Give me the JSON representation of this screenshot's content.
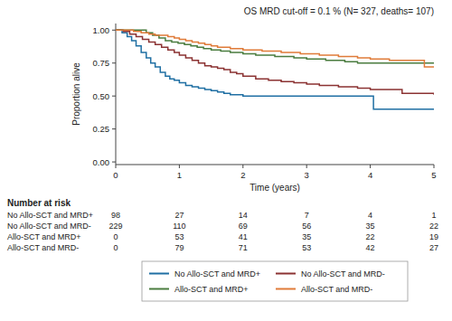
{
  "chart_data": {
    "type": "step",
    "title": "OS MRD cut-off = 0.1 % (N= 327, deaths= 107)",
    "xlabel": "Time (years)",
    "ylabel": "Proportion alive",
    "xlim": [
      0,
      5
    ],
    "ylim": [
      -0.02,
      1.05
    ],
    "xticks": [
      0,
      1,
      2,
      3,
      4,
      5
    ],
    "yticks": [
      {
        "value": 0.0,
        "label": "0.00"
      },
      {
        "value": 0.25,
        "label": "0.25"
      },
      {
        "value": 0.5,
        "label": "0.50"
      },
      {
        "value": 0.75,
        "label": "0.75"
      },
      {
        "value": 1.0,
        "label": "1.00"
      }
    ],
    "grid": false,
    "legend": "bottom",
    "at_risk_title": "Number at risk",
    "series": [
      {
        "name": "No Allo-SCT and MRD+",
        "color": "#1F6FA3",
        "x": [
          0,
          0.1,
          0.18,
          0.25,
          0.32,
          0.4,
          0.48,
          0.55,
          0.62,
          0.7,
          0.78,
          0.85,
          0.92,
          1.0,
          1.1,
          1.2,
          1.3,
          1.4,
          1.5,
          1.6,
          1.7,
          1.8,
          1.9,
          2.0,
          2.2,
          2.4,
          2.6,
          2.8,
          3.0,
          3.2,
          3.5,
          3.8,
          4.0,
          4.05,
          5.0
        ],
        "values": [
          1.0,
          0.98,
          0.95,
          0.92,
          0.88,
          0.83,
          0.79,
          0.75,
          0.72,
          0.68,
          0.65,
          0.63,
          0.62,
          0.6,
          0.58,
          0.57,
          0.56,
          0.55,
          0.54,
          0.53,
          0.52,
          0.51,
          0.51,
          0.5,
          0.5,
          0.5,
          0.5,
          0.5,
          0.5,
          0.5,
          0.5,
          0.5,
          0.5,
          0.4,
          0.4
        ],
        "at_risk": [
          98,
          27,
          14,
          7,
          4,
          1
        ]
      },
      {
        "name": "No Allo-SCT and MRD-",
        "color": "#8B3232",
        "x": [
          0,
          0.12,
          0.22,
          0.32,
          0.42,
          0.52,
          0.62,
          0.72,
          0.82,
          0.92,
          1.0,
          1.1,
          1.2,
          1.3,
          1.4,
          1.5,
          1.6,
          1.7,
          1.8,
          1.9,
          2.0,
          2.2,
          2.4,
          2.6,
          2.8,
          3.0,
          3.2,
          3.5,
          3.8,
          4.0,
          4.5,
          5.0
        ],
        "values": [
          1.0,
          0.99,
          0.97,
          0.95,
          0.93,
          0.91,
          0.89,
          0.87,
          0.85,
          0.83,
          0.81,
          0.79,
          0.77,
          0.75,
          0.73,
          0.72,
          0.71,
          0.7,
          0.68,
          0.67,
          0.65,
          0.63,
          0.62,
          0.61,
          0.6,
          0.59,
          0.58,
          0.57,
          0.56,
          0.55,
          0.52,
          0.51
        ],
        "at_risk": [
          229,
          110,
          69,
          56,
          35,
          22
        ]
      },
      {
        "name": "Allo-SCT and MRD+",
        "color": "#4A7C3F",
        "x": [
          0,
          0.35,
          0.48,
          0.58,
          0.68,
          0.78,
          0.88,
          0.98,
          1.08,
          1.18,
          1.28,
          1.38,
          1.5,
          1.65,
          1.8,
          2.0,
          2.2,
          2.5,
          2.8,
          3.0,
          3.3,
          3.6,
          3.8,
          4.0,
          4.3,
          4.6,
          5.0
        ],
        "values": [
          1.0,
          1.0,
          0.98,
          0.96,
          0.94,
          0.92,
          0.91,
          0.9,
          0.89,
          0.88,
          0.87,
          0.86,
          0.85,
          0.84,
          0.83,
          0.82,
          0.81,
          0.8,
          0.79,
          0.78,
          0.77,
          0.76,
          0.75,
          0.75,
          0.75,
          0.75,
          0.75
        ],
        "at_risk": [
          0,
          53,
          41,
          35,
          22,
          19
        ]
      },
      {
        "name": "Allo-SCT and MRD-",
        "color": "#E07B39",
        "x": [
          0,
          0.15,
          0.28,
          0.4,
          0.52,
          0.62,
          0.72,
          0.82,
          0.92,
          1.0,
          1.1,
          1.2,
          1.3,
          1.4,
          1.5,
          1.6,
          1.8,
          2.0,
          2.3,
          2.6,
          2.9,
          3.2,
          3.5,
          3.8,
          4.0,
          4.3,
          4.7,
          4.85,
          5.0
        ],
        "values": [
          1.0,
          1.0,
          0.99,
          0.98,
          0.97,
          0.96,
          0.96,
          0.95,
          0.94,
          0.93,
          0.92,
          0.91,
          0.9,
          0.89,
          0.88,
          0.87,
          0.86,
          0.85,
          0.84,
          0.83,
          0.82,
          0.81,
          0.8,
          0.79,
          0.78,
          0.77,
          0.77,
          0.72,
          0.72
        ],
        "at_risk": [
          0,
          79,
          71,
          53,
          42,
          27
        ]
      }
    ]
  }
}
